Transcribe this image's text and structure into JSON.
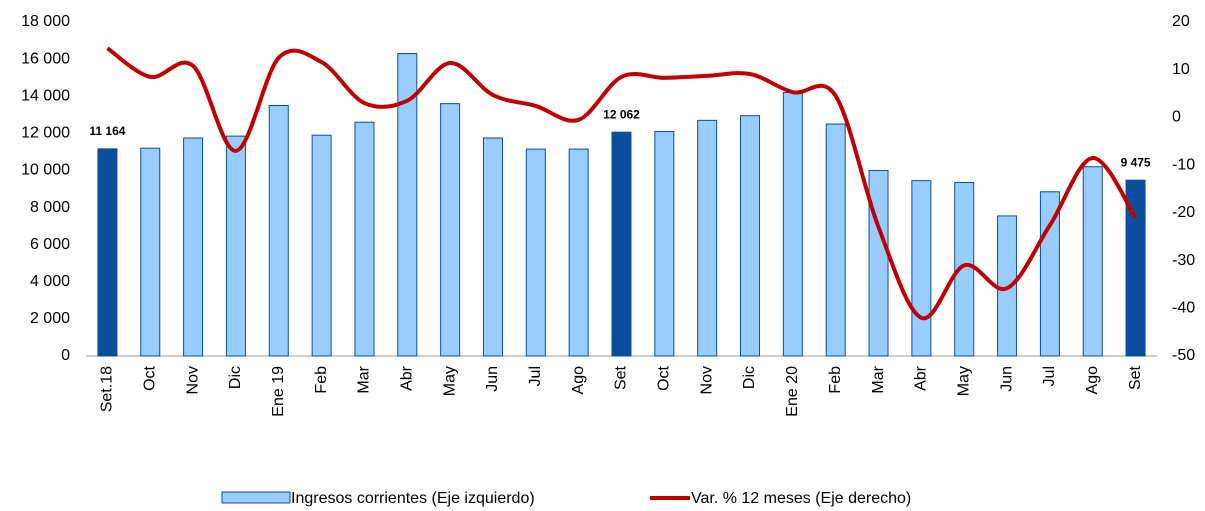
{
  "chart_data": {
    "type": "combo",
    "categories": [
      "Set.18",
      "Oct",
      "Nov",
      "Dic",
      "Ene 19",
      "Feb",
      "Mar",
      "Abr",
      "May",
      "Jun",
      "Jul",
      "Ago",
      "Set",
      "Oct",
      "Nov",
      "Dic",
      "Ene 20",
      "Feb",
      "Mar",
      "Abr",
      "May",
      "Jun",
      "Jul",
      "Ago",
      "Set"
    ],
    "series": [
      {
        "name": "Ingresos corrientes (Eje izquierdo)",
        "type": "bar",
        "color": "#99ccff",
        "colors": [
          "#0b4f9c",
          "#99ccff",
          "#99ccff",
          "#99ccff",
          "#99ccff",
          "#99ccff",
          "#99ccff",
          "#99ccff",
          "#99ccff",
          "#99ccff",
          "#99ccff",
          "#99ccff",
          "#0b4f9c",
          "#99ccff",
          "#99ccff",
          "#99ccff",
          "#99ccff",
          "#99ccff",
          "#99ccff",
          "#99ccff",
          "#99ccff",
          "#99ccff",
          "#99ccff",
          "#99ccff",
          "#0b4f9c"
        ],
        "values": [
          11164,
          11200,
          11750,
          11850,
          13500,
          11900,
          12600,
          16300,
          13600,
          11750,
          11150,
          11150,
          12062,
          12100,
          12700,
          12950,
          14200,
          12500,
          10000,
          9450,
          9350,
          7550,
          8850,
          10200,
          9475
        ],
        "value_labels": [
          "11 164",
          null,
          null,
          null,
          null,
          null,
          null,
          null,
          null,
          null,
          null,
          null,
          "12 062",
          null,
          null,
          null,
          null,
          null,
          null,
          null,
          null,
          null,
          null,
          null,
          "9 475"
        ]
      },
      {
        "name": "Var. % 12 meses (Eje derecho)",
        "type": "line",
        "color": "#c00000",
        "axis": "y2",
        "values": [
          14.5,
          8.5,
          10.8,
          -7,
          12.5,
          11.6,
          3,
          3.5,
          11.4,
          4.7,
          2.4,
          -0.5,
          8.5,
          8.3,
          8.7,
          9.1,
          5.3,
          4.5,
          -23,
          -42,
          -31,
          -35.8,
          -22.6,
          -8.5,
          -21
        ]
      }
    ],
    "ylim": [
      0,
      18000
    ],
    "yticks": [
      0,
      {
        "value": 2000,
        "label": "2 000"
      },
      {
        "value": 4000,
        "label": "4 000"
      },
      {
        "value": 6000,
        "label": "6 000"
      },
      {
        "value": 8000,
        "label": "8 000"
      },
      {
        "value": 10000,
        "label": "10 000"
      },
      {
        "value": 12000,
        "label": "12 000"
      },
      {
        "value": 14000,
        "label": "14 000"
      },
      {
        "value": 16000,
        "label": "16 000"
      },
      {
        "value": 18000,
        "label": "18 000"
      }
    ],
    "y2lim": [
      -50,
      20
    ],
    "y2ticks": [
      -50,
      -40,
      -30,
      -20,
      -10,
      0,
      10,
      20
    ],
    "legend": "bottom"
  }
}
